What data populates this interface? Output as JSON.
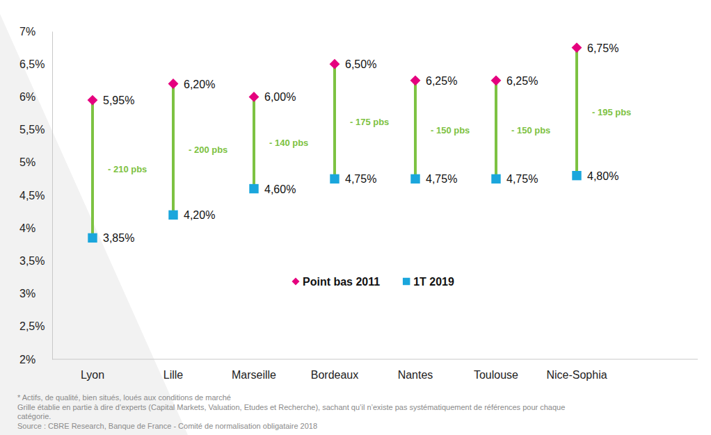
{
  "chart_data": {
    "type": "dumbbell",
    "categories": [
      "Lyon",
      "Lille",
      "Marseille",
      "Bordeaux",
      "Nantes",
      "Toulouse",
      "Nice-Sophia"
    ],
    "series": [
      {
        "name": "Point bas 2011",
        "color": "#e5007e",
        "marker": "diamond",
        "values": [
          5.95,
          6.2,
          6.0,
          6.5,
          6.25,
          6.25,
          6.75
        ],
        "value_labels": [
          "5,95%",
          "6,20%",
          "6,00%",
          "6,50%",
          "6,25%",
          "6,25%",
          "6,75%"
        ]
      },
      {
        "name": "1T 2019",
        "color": "#1aa6dc",
        "marker": "square",
        "values": [
          3.85,
          4.2,
          4.6,
          4.75,
          4.75,
          4.75,
          4.8
        ],
        "value_labels": [
          "3,85%",
          "4,20%",
          "4,60%",
          "4,75%",
          "4,75%",
          "4,75%",
          "4,80%"
        ]
      }
    ],
    "annotations": [
      "- 210 pbs",
      "- 200 pbs",
      "- 140 pbs",
      "- 175 pbs",
      "- 150 pbs",
      "- 150 pbs",
      "- 195 pbs"
    ],
    "ylim": [
      2,
      7
    ],
    "yticks": [
      {
        "value": 2,
        "label": "2%"
      },
      {
        "value": 2.5,
        "label": "2,5%"
      },
      {
        "value": 3,
        "label": "3%"
      },
      {
        "value": 3.5,
        "label": "3,5%"
      },
      {
        "value": 4,
        "label": "4%"
      },
      {
        "value": 4.5,
        "label": "4,5%"
      },
      {
        "value": 5,
        "label": "5%"
      },
      {
        "value": 5.5,
        "label": "5,5%"
      },
      {
        "value": 6,
        "label": "6%"
      },
      {
        "value": 6.5,
        "label": "6,5%"
      },
      {
        "value": 7,
        "label": "7%"
      }
    ],
    "grid": false,
    "legend": "center",
    "data_labels": true,
    "notes": [
      "* Actifs, de qualité, bien situés, loués aux conditions de marché",
      "Grille établie en partie à dire d’experts (Capital Markets, Valuation, Etudes et Recherche), sachant qu’il n’existe pas systématiquement de références pour chaque",
      "catégorie.",
      "Source : CBRE Research, Banque de France - Comité de normalisation obligataire 2018"
    ]
  }
}
